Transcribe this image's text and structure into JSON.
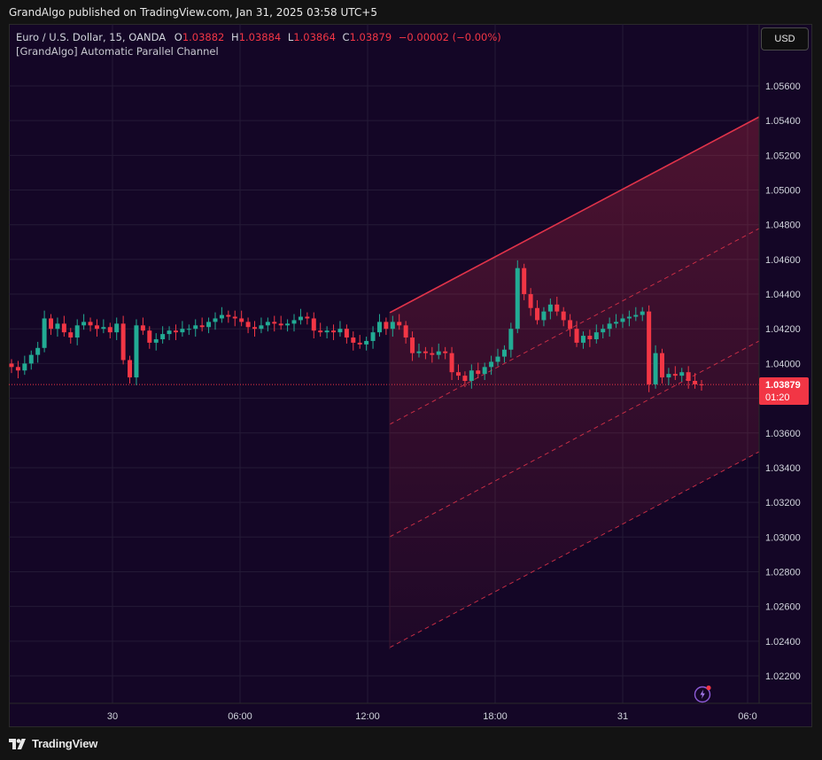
{
  "header": {
    "published": "GrandAlgo published on TradingView.com, Jan 31, 2025 03:58 UTC+5"
  },
  "legend": {
    "symbol": "Euro / U.S. Dollar, 15, OANDA",
    "open_label": "O",
    "open": "1.03882",
    "high_label": "H",
    "high": "1.03884",
    "low_label": "L",
    "low": "1.03864",
    "close_label": "C",
    "close": "1.03879",
    "change": "−0.00002 (−0.00%)",
    "indicator": "[GrandAlgo] Automatic Parallel Channel"
  },
  "toolbar": {
    "currency": "USD"
  },
  "price_tag": {
    "price": "1.03879",
    "countdown": "01:20"
  },
  "brand": {
    "name": "TradingView"
  },
  "icons": {
    "flash": "flash-icon",
    "logo": "tradingview-logo-icon"
  },
  "colors": {
    "background": "#140626",
    "up": "#22ab94",
    "down": "#f23645",
    "channel": "#e0334a",
    "grid": "#241a36"
  },
  "chart_data": {
    "type": "candlestick",
    "title": "",
    "y_axis": {
      "position": "right",
      "ylim": [
        1.021,
        1.0585
      ],
      "ticks": [
        "1.02200",
        "1.02400",
        "1.02600",
        "1.02800",
        "1.03000",
        "1.03200",
        "1.03400",
        "1.03600",
        "1.03800",
        "1.04000",
        "1.04200",
        "1.04400",
        "1.04600",
        "1.04800",
        "1.05000",
        "1.05200",
        "1.05400",
        "1.05600"
      ]
    },
    "x_axis": {
      "ticks": [
        "30",
        "06:00",
        "12:00",
        "18:00",
        "31",
        "06:0"
      ]
    },
    "grid": true,
    "last_price": 1.03879,
    "close_series": [
      1.0398,
      1.0396,
      1.04,
      1.0405,
      1.0409,
      1.0426,
      1.042,
      1.0423,
      1.0418,
      1.0415,
      1.0422,
      1.0424,
      1.0422,
      1.042,
      1.0421,
      1.0418,
      1.0423,
      1.0402,
      1.0392,
      1.0422,
      1.0419,
      1.0412,
      1.0414,
      1.0417,
      1.0419,
      1.0418,
      1.042,
      1.042,
      1.0422,
      1.0421,
      1.0424,
      1.0426,
      1.0428,
      1.0427,
      1.0426,
      1.0424,
      1.0421,
      1.042,
      1.0422,
      1.0424,
      1.0423,
      1.0422,
      1.0423,
      1.0425,
      1.0427,
      1.0426,
      1.0419,
      1.0418,
      1.0419,
      1.0418,
      1.042,
      1.0415,
      1.0412,
      1.0411,
      1.0413,
      1.0418,
      1.0424,
      1.042,
      1.0424,
      1.0422,
      1.0415,
      1.0406,
      1.0407,
      1.0406,
      1.0405,
      1.0407,
      1.0406,
      1.0395,
      1.0393,
      1.039,
      1.0396,
      1.0394,
      1.0398,
      1.0401,
      1.0404,
      1.0408,
      1.042,
      1.0455,
      1.044,
      1.0432,
      1.0425,
      1.043,
      1.0434,
      1.043,
      1.0425,
      1.042,
      1.0412,
      1.0416,
      1.0414,
      1.0418,
      1.042,
      1.0423,
      1.0424,
      1.0426,
      1.0427,
      1.0428,
      1.043,
      1.0388,
      1.0406,
      1.0392,
      1.0394,
      1.0393,
      1.0395,
      1.039,
      1.0388,
      1.03879
    ]
  }
}
